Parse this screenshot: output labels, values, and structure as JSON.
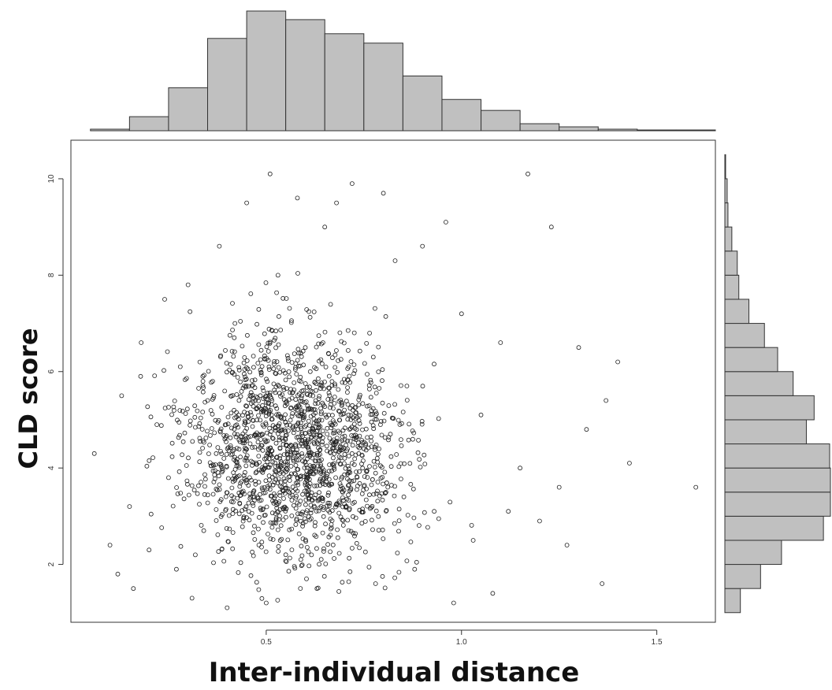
{
  "chart_data": {
    "type": "scatter",
    "title": "",
    "xlabel": "Inter-individual distance",
    "ylabel": "CLD score",
    "xlim": [
      0.0,
      1.65
    ],
    "ylim": [
      0.8,
      10.8
    ],
    "x_ticks": [
      0.5,
      1.0,
      1.5
    ],
    "x_tick_labels": [
      "0.5",
      "1.0",
      "1.5"
    ],
    "y_ticks": [
      2,
      4,
      6,
      8,
      10
    ],
    "y_tick_labels": [
      "2",
      "4",
      "6",
      "8",
      "10"
    ],
    "grid": false,
    "legend": "none",
    "point_color": "#222222",
    "bar_color": "#c0c0c0",
    "marginal_x_hist": {
      "bin_edges": [
        0.05,
        0.15,
        0.25,
        0.35,
        0.45,
        0.55,
        0.65,
        0.75,
        0.85,
        0.95,
        1.05,
        1.15,
        1.25,
        1.35,
        1.45,
        1.55,
        1.65
      ],
      "counts": [
        2,
        18,
        55,
        118,
        153,
        142,
        124,
        112,
        70,
        40,
        26,
        9,
        5,
        2,
        1,
        1
      ]
    },
    "marginal_y_hist": {
      "bin_edges": [
        1.0,
        1.5,
        2.0,
        2.5,
        3.0,
        3.5,
        4.0,
        4.5,
        5.0,
        5.5,
        6.0,
        6.5,
        7.0,
        7.5,
        8.0,
        8.5,
        9.0,
        9.5,
        10.0,
        10.5
      ],
      "counts": [
        20,
        46,
        73,
        127,
        136,
        136,
        135,
        105,
        115,
        88,
        68,
        51,
        31,
        18,
        16,
        9,
        4,
        3,
        1
      ]
    },
    "points": [
      [
        0.06,
        4.3
      ],
      [
        0.1,
        2.4
      ],
      [
        0.12,
        1.8
      ],
      [
        0.13,
        5.5
      ],
      [
        0.15,
        3.2
      ],
      [
        0.16,
        1.5
      ],
      [
        0.18,
        6.6
      ],
      [
        0.2,
        2.3
      ],
      [
        0.22,
        4.9
      ],
      [
        0.24,
        7.5
      ],
      [
        0.25,
        3.8
      ],
      [
        0.27,
        1.9
      ],
      [
        0.28,
        6.1
      ],
      [
        0.3,
        7.8
      ],
      [
        0.31,
        1.3
      ],
      [
        0.34,
        2.7
      ],
      [
        0.35,
        5.4
      ],
      [
        0.38,
        8.6
      ],
      [
        0.4,
        1.1
      ],
      [
        0.42,
        7.0
      ],
      [
        0.45,
        9.5
      ],
      [
        0.47,
        3.4
      ],
      [
        0.5,
        1.2
      ],
      [
        0.51,
        10.1
      ],
      [
        0.53,
        8.0
      ],
      [
        0.55,
        2.2
      ],
      [
        0.58,
        9.6
      ],
      [
        0.6,
        6.5
      ],
      [
        0.63,
        1.5
      ],
      [
        0.65,
        9.0
      ],
      [
        0.68,
        9.5
      ],
      [
        0.72,
        9.9
      ],
      [
        0.75,
        4.4
      ],
      [
        0.78,
        1.6
      ],
      [
        0.8,
        9.7
      ],
      [
        0.83,
        8.3
      ],
      [
        0.86,
        5.7
      ],
      [
        0.88,
        1.9
      ],
      [
        0.9,
        8.6
      ],
      [
        0.93,
        3.1
      ],
      [
        0.96,
        9.1
      ],
      [
        0.98,
        1.2
      ],
      [
        1.0,
        7.2
      ],
      [
        1.03,
        2.5
      ],
      [
        1.05,
        5.1
      ],
      [
        1.08,
        1.4
      ],
      [
        1.1,
        6.6
      ],
      [
        1.12,
        3.1
      ],
      [
        1.15,
        4.0
      ],
      [
        1.17,
        10.1
      ],
      [
        1.2,
        2.9
      ],
      [
        1.23,
        9.0
      ],
      [
        1.25,
        3.6
      ],
      [
        1.27,
        2.4
      ],
      [
        1.3,
        6.5
      ],
      [
        1.32,
        4.8
      ],
      [
        1.36,
        1.6
      ],
      [
        1.37,
        5.4
      ],
      [
        1.4,
        6.2
      ],
      [
        1.43,
        4.1
      ],
      [
        1.6,
        3.6
      ]
    ]
  }
}
